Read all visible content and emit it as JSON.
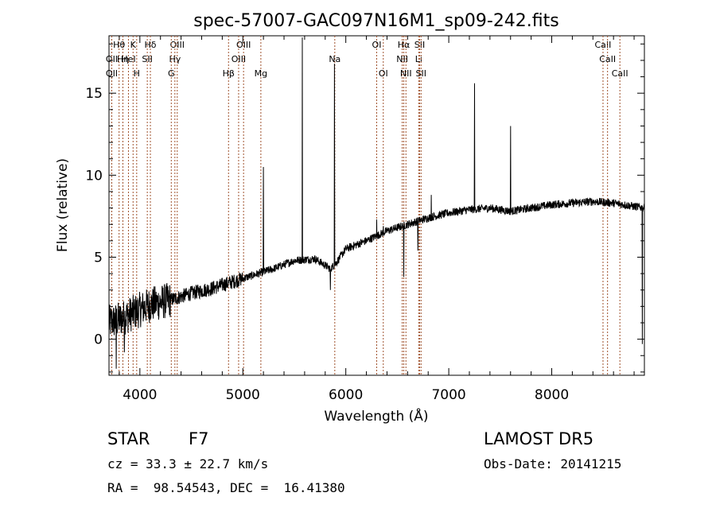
{
  "chart_data": {
    "type": "line",
    "title": "spec-57007-GAC097N16M1_sp09-242.fits",
    "xlabel": "Wavelength (Å)",
    "ylabel": "Flux (relative)",
    "xlim": [
      3700,
      8900
    ],
    "ylim": [
      -2.2,
      18.5
    ],
    "x_ticks": [
      4000,
      5000,
      6000,
      7000,
      8000
    ],
    "y_ticks": [
      0,
      5,
      10,
      15
    ],
    "grid": false,
    "line_color": "#000000",
    "marker_color": "#a0522d",
    "continuum": [
      [
        3700,
        1.0
      ],
      [
        3800,
        1.2
      ],
      [
        3900,
        1.5
      ],
      [
        4000,
        1.8
      ],
      [
        4100,
        2.1
      ],
      [
        4300,
        2.4
      ],
      [
        4500,
        2.8
      ],
      [
        4700,
        3.1
      ],
      [
        4900,
        3.5
      ],
      [
        5100,
        3.9
      ],
      [
        5300,
        4.3
      ],
      [
        5500,
        4.8
      ],
      [
        5700,
        4.9
      ],
      [
        5850,
        4.3
      ],
      [
        5900,
        4.6
      ],
      [
        6000,
        5.5
      ],
      [
        6200,
        6.0
      ],
      [
        6400,
        6.6
      ],
      [
        6600,
        7.0
      ],
      [
        6800,
        7.4
      ],
      [
        7000,
        7.7
      ],
      [
        7200,
        7.9
      ],
      [
        7400,
        8.0
      ],
      [
        7600,
        7.8
      ],
      [
        7800,
        8.0
      ],
      [
        8000,
        8.2
      ],
      [
        8200,
        8.3
      ],
      [
        8400,
        8.4
      ],
      [
        8600,
        8.3
      ],
      [
        8800,
        8.1
      ],
      [
        8900,
        8.0
      ]
    ],
    "peaks": [
      [
        5199,
        10.5
      ],
      [
        5577,
        18.4
      ],
      [
        5890,
        16.8
      ],
      [
        6300,
        7.3
      ],
      [
        6364,
        6.9
      ],
      [
        6563,
        7.3
      ],
      [
        6830,
        8.8
      ],
      [
        7250,
        15.6
      ],
      [
        7600,
        13.0
      ]
    ],
    "dips": [
      [
        3770,
        -1.8
      ],
      [
        3850,
        -0.8
      ],
      [
        5850,
        3.0
      ],
      [
        6563,
        3.8
      ],
      [
        6700,
        5.4
      ],
      [
        8880,
        -0.3
      ]
    ],
    "line_markers": [
      {
        "name": "Hθ",
        "wavelength": 3798,
        "row": 0
      },
      {
        "name": "K",
        "wavelength": 3934,
        "row": 0
      },
      {
        "name": "Hδ",
        "wavelength": 4102,
        "row": 0
      },
      {
        "name": "OIII",
        "wavelength": 4363,
        "row": 0
      },
      {
        "name": "OIII",
        "wavelength": 5007,
        "row": 0
      },
      {
        "name": "OI",
        "wavelength": 6300,
        "row": 0
      },
      {
        "name": "Hα",
        "wavelength": 6563,
        "row": 0
      },
      {
        "name": "SII",
        "wavelength": 6717,
        "row": 0
      },
      {
        "name": "CaII",
        "wavelength": 8498,
        "row": 0
      },
      {
        "name": "OII",
        "wavelength": 3727,
        "row": 1
      },
      {
        "name": "Hη",
        "wavelength": 3835,
        "row": 1
      },
      {
        "name": "HeI",
        "wavelength": 3889,
        "row": 1
      },
      {
        "name": "SII",
        "wavelength": 4072,
        "row": 1
      },
      {
        "name": "Hγ",
        "wavelength": 4340,
        "row": 1
      },
      {
        "name": "OIII",
        "wavelength": 4959,
        "row": 1
      },
      {
        "name": "Na",
        "wavelength": 5893,
        "row": 1
      },
      {
        "name": "NII",
        "wavelength": 6548,
        "row": 1
      },
      {
        "name": "Li",
        "wavelength": 6708,
        "row": 1
      },
      {
        "name": "CaII",
        "wavelength": 8542,
        "row": 1
      },
      {
        "name": "OII",
        "wavelength": 3727,
        "row": 2
      },
      {
        "name": "H",
        "wavelength": 3969,
        "row": 2
      },
      {
        "name": "G",
        "wavelength": 4305,
        "row": 2
      },
      {
        "name": "Hβ",
        "wavelength": 4861,
        "row": 2
      },
      {
        "name": "Mg",
        "wavelength": 5175,
        "row": 2
      },
      {
        "name": "OI",
        "wavelength": 6364,
        "row": 2
      },
      {
        "name": "NII",
        "wavelength": 6584,
        "row": 2
      },
      {
        "name": "SII",
        "wavelength": 6731,
        "row": 2
      },
      {
        "name": "CaII",
        "wavelength": 8662,
        "row": 2
      }
    ]
  },
  "info": {
    "class_label": "STAR",
    "subclass": "F7",
    "cz": "cz = 33.3 ± 22.7 km/s",
    "coords": "RA =  98.54543, DEC =  16.41380",
    "survey": "LAMOST DR5",
    "obs_date": "Obs-Date: 20141215"
  }
}
